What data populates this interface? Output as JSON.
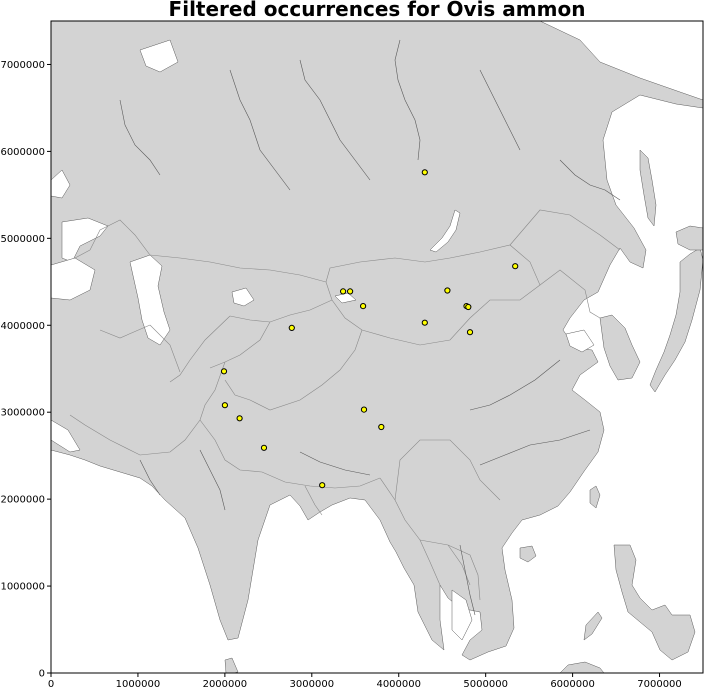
{
  "title": "Filtered occurrences for Ovis ammon",
  "colors": {
    "land": "#d3d3d3",
    "water": "#ffffff",
    "border": "#8a8a8a",
    "coast": "#5a5a5a",
    "point_fill": "#ffff00",
    "point_edge": "#000000"
  },
  "axes": {
    "xlim": [
      0,
      7500000
    ],
    "ylim": [
      0,
      7500000
    ],
    "x_ticks": [
      {
        "value": 0,
        "label": "0"
      },
      {
        "value": 1000000,
        "label": "1000000"
      },
      {
        "value": 2000000,
        "label": "2000000"
      },
      {
        "value": 3000000,
        "label": "3000000"
      },
      {
        "value": 4000000,
        "label": "4000000"
      },
      {
        "value": 5000000,
        "label": "5000000"
      },
      {
        "value": 6000000,
        "label": "6000000"
      },
      {
        "value": 7000000,
        "label": "7000000"
      }
    ],
    "y_ticks": [
      {
        "value": 0,
        "label": "0"
      },
      {
        "value": 1000000,
        "label": "1000000"
      },
      {
        "value": 2000000,
        "label": "2000000"
      },
      {
        "value": 3000000,
        "label": "3000000"
      },
      {
        "value": 4000000,
        "label": "4000000"
      },
      {
        "value": 5000000,
        "label": "5000000"
      },
      {
        "value": 6000000,
        "label": "6000000"
      },
      {
        "value": 7000000,
        "label": "7000000"
      }
    ]
  },
  "points": [
    {
      "x": 4300000,
      "y": 5760000
    },
    {
      "x": 5340000,
      "y": 4680000
    },
    {
      "x": 4560000,
      "y": 4400000
    },
    {
      "x": 4780000,
      "y": 4220000
    },
    {
      "x": 4800000,
      "y": 4210000
    },
    {
      "x": 4820000,
      "y": 3920000
    },
    {
      "x": 4300000,
      "y": 4030000
    },
    {
      "x": 3360000,
      "y": 4390000
    },
    {
      "x": 3440000,
      "y": 4390000
    },
    {
      "x": 3590000,
      "y": 4220000
    },
    {
      "x": 2770000,
      "y": 3970000
    },
    {
      "x": 1990000,
      "y": 3470000
    },
    {
      "x": 2000000,
      "y": 3080000
    },
    {
      "x": 2170000,
      "y": 2930000
    },
    {
      "x": 3600000,
      "y": 3030000
    },
    {
      "x": 3800000,
      "y": 2830000
    },
    {
      "x": 2450000,
      "y": 2590000
    },
    {
      "x": 3120000,
      "y": 2160000
    }
  ]
}
